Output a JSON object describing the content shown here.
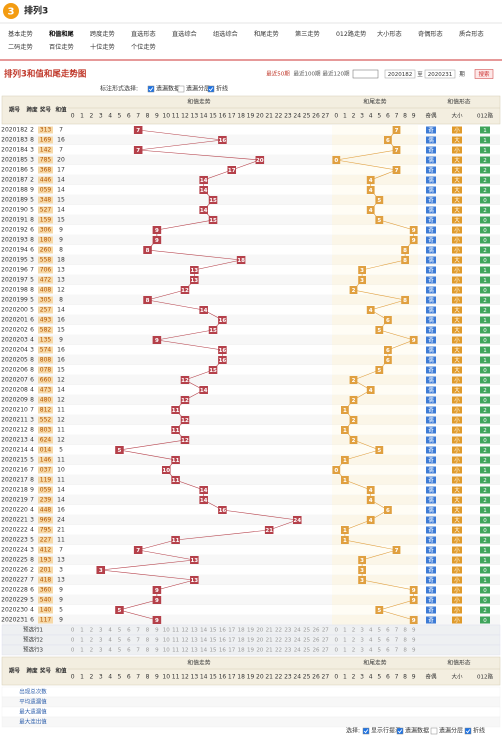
{
  "header": {
    "logo": "3",
    "title": "排列3"
  },
  "nav": [
    "基本走势",
    "和值和尾",
    "跨度走势",
    "直选形态",
    "直选综合",
    "组选综合",
    "和尾走势",
    "第三走势",
    "012路走势",
    "大小形态",
    "奇偶形态",
    "质合形态",
    "二码走势",
    "百位走势",
    "十位走势",
    "个位走势"
  ],
  "page_title": "排列3和值和尾走势图",
  "period_links": [
    "最近50期",
    "最近100期",
    "最近120期"
  ],
  "range": {
    "from": "2020182",
    "to_label": "至",
    "to": "2020231",
    "unit": "期",
    "button": "搜索"
  },
  "controls": {
    "label": "标注形式选择:",
    "options": [
      "遗漏数据",
      "遗漏分层",
      "折线"
    ]
  },
  "table": {
    "headers": [
      "期号",
      "跨度",
      "奖号",
      "和值"
    ],
    "group_headers": [
      "和值走势",
      "和尾走势",
      "和值形态"
    ],
    "sum_cols": [
      0,
      1,
      2,
      3,
      4,
      5,
      6,
      7,
      8,
      9,
      10,
      11,
      12,
      13,
      14,
      15,
      16,
      17,
      18,
      19,
      20,
      21,
      22,
      23,
      24,
      25,
      26,
      27
    ],
    "tail_cols": [
      0,
      1,
      2,
      3,
      4,
      5,
      6,
      7,
      8,
      9
    ],
    "shape_cols": [
      "奇偶",
      "大小",
      "012路"
    ],
    "rows": [
      [
        "2020182",
        2,
        "313",
        7,
        7,
        "奇",
        "小",
        1
      ],
      [
        "2020183",
        8,
        "169",
        16,
        6,
        "偶",
        "大",
        1
      ],
      [
        "2020184",
        3,
        "142",
        7,
        7,
        "奇",
        "小",
        1
      ],
      [
        "2020185",
        3,
        "785",
        20,
        0,
        "偶",
        "大",
        2
      ],
      [
        "2020186",
        5,
        "368",
        17,
        7,
        "奇",
        "大",
        2
      ],
      [
        "2020187",
        2,
        "446",
        14,
        4,
        "偶",
        "大",
        2
      ],
      [
        "2020188",
        9,
        "059",
        14,
        4,
        "偶",
        "大",
        2
      ],
      [
        "2020189",
        5,
        "348",
        15,
        5,
        "奇",
        "大",
        0
      ],
      [
        "2020190",
        5,
        "527",
        14,
        4,
        "偶",
        "大",
        2
      ],
      [
        "2020191",
        8,
        "159",
        15,
        5,
        "奇",
        "大",
        0
      ],
      [
        "2020192",
        6,
        "306",
        9,
        9,
        "奇",
        "小",
        0
      ],
      [
        "2020193",
        8,
        "180",
        9,
        9,
        "奇",
        "小",
        0
      ],
      [
        "2020194",
        6,
        "260",
        8,
        8,
        "偶",
        "小",
        2
      ],
      [
        "2020195",
        3,
        "558",
        18,
        8,
        "偶",
        "大",
        0
      ],
      [
        "2020196",
        7,
        "706",
        13,
        3,
        "奇",
        "小",
        1
      ],
      [
        "2020197",
        5,
        "472",
        13,
        3,
        "奇",
        "小",
        1
      ],
      [
        "2020198",
        8,
        "408",
        12,
        2,
        "偶",
        "小",
        0
      ],
      [
        "2020199",
        5,
        "305",
        8,
        8,
        "偶",
        "小",
        2
      ],
      [
        "2020200",
        5,
        "257",
        14,
        4,
        "偶",
        "大",
        2
      ],
      [
        "2020201",
        6,
        "493",
        16,
        6,
        "偶",
        "大",
        1
      ],
      [
        "2020202",
        6,
        "582",
        15,
        5,
        "奇",
        "大",
        0
      ],
      [
        "2020203",
        4,
        "135",
        9,
        9,
        "奇",
        "小",
        0
      ],
      [
        "2020204",
        3,
        "574",
        16,
        6,
        "偶",
        "大",
        1
      ],
      [
        "2020205",
        8,
        "808",
        16,
        6,
        "偶",
        "大",
        1
      ],
      [
        "2020206",
        8,
        "078",
        15,
        5,
        "奇",
        "大",
        0
      ],
      [
        "2020207",
        6,
        "660",
        12,
        2,
        "偶",
        "小",
        0
      ],
      [
        "2020208",
        4,
        "473",
        14,
        4,
        "偶",
        "大",
        2
      ],
      [
        "2020209",
        8,
        "480",
        12,
        2,
        "偶",
        "小",
        0
      ],
      [
        "2020210",
        7,
        "812",
        11,
        1,
        "奇",
        "小",
        2
      ],
      [
        "2020211",
        3,
        "552",
        12,
        2,
        "偶",
        "小",
        0
      ],
      [
        "2020212",
        8,
        "803",
        11,
        1,
        "奇",
        "小",
        2
      ],
      [
        "2020213",
        4,
        "624",
        12,
        2,
        "偶",
        "小",
        0
      ],
      [
        "2020214",
        4,
        "014",
        5,
        5,
        "奇",
        "小",
        2
      ],
      [
        "2020215",
        5,
        "146",
        11,
        1,
        "奇",
        "小",
        2
      ],
      [
        "2020216",
        7,
        "037",
        10,
        0,
        "偶",
        "小",
        1
      ],
      [
        "2020217",
        8,
        "119",
        11,
        1,
        "奇",
        "小",
        2
      ],
      [
        "2020218",
        9,
        "059",
        14,
        4,
        "偶",
        "大",
        2
      ],
      [
        "2020219",
        7,
        "239",
        14,
        4,
        "偶",
        "大",
        2
      ],
      [
        "2020220",
        4,
        "448",
        16,
        6,
        "偶",
        "大",
        1
      ],
      [
        "2020221",
        3,
        "969",
        24,
        4,
        "偶",
        "大",
        0
      ],
      [
        "2020222",
        4,
        "795",
        21,
        1,
        "奇",
        "大",
        0
      ],
      [
        "2020223",
        5,
        "227",
        11,
        1,
        "奇",
        "小",
        2
      ],
      [
        "2020224",
        3,
        "412",
        7,
        7,
        "奇",
        "小",
        1
      ],
      [
        "2020225",
        8,
        "193",
        13,
        3,
        "奇",
        "小",
        1
      ],
      [
        "2020226",
        2,
        "201",
        3,
        3,
        "奇",
        "小",
        0
      ],
      [
        "2020227",
        7,
        "418",
        13,
        3,
        "奇",
        "小",
        1
      ],
      [
        "2020228",
        6,
        "360",
        9,
        9,
        "奇",
        "小",
        0
      ],
      [
        "2020229",
        5,
        "540",
        9,
        9,
        "奇",
        "小",
        0
      ],
      [
        "2020230",
        4,
        "140",
        5,
        5,
        "奇",
        "小",
        2
      ],
      [
        "2020231",
        6,
        "117",
        9,
        9,
        "奇",
        "小",
        0
      ]
    ],
    "preset_rows": [
      "预选行1",
      "预选行2",
      "预选行3"
    ],
    "stats_rows": [
      "出现总次数",
      "平均遗漏值",
      "最大遗漏值",
      "最大连出值"
    ]
  },
  "footer": {
    "label": "选择:",
    "options": [
      "显示行提示",
      "遗漏数据",
      "遗漏分层",
      "折线"
    ]
  }
}
